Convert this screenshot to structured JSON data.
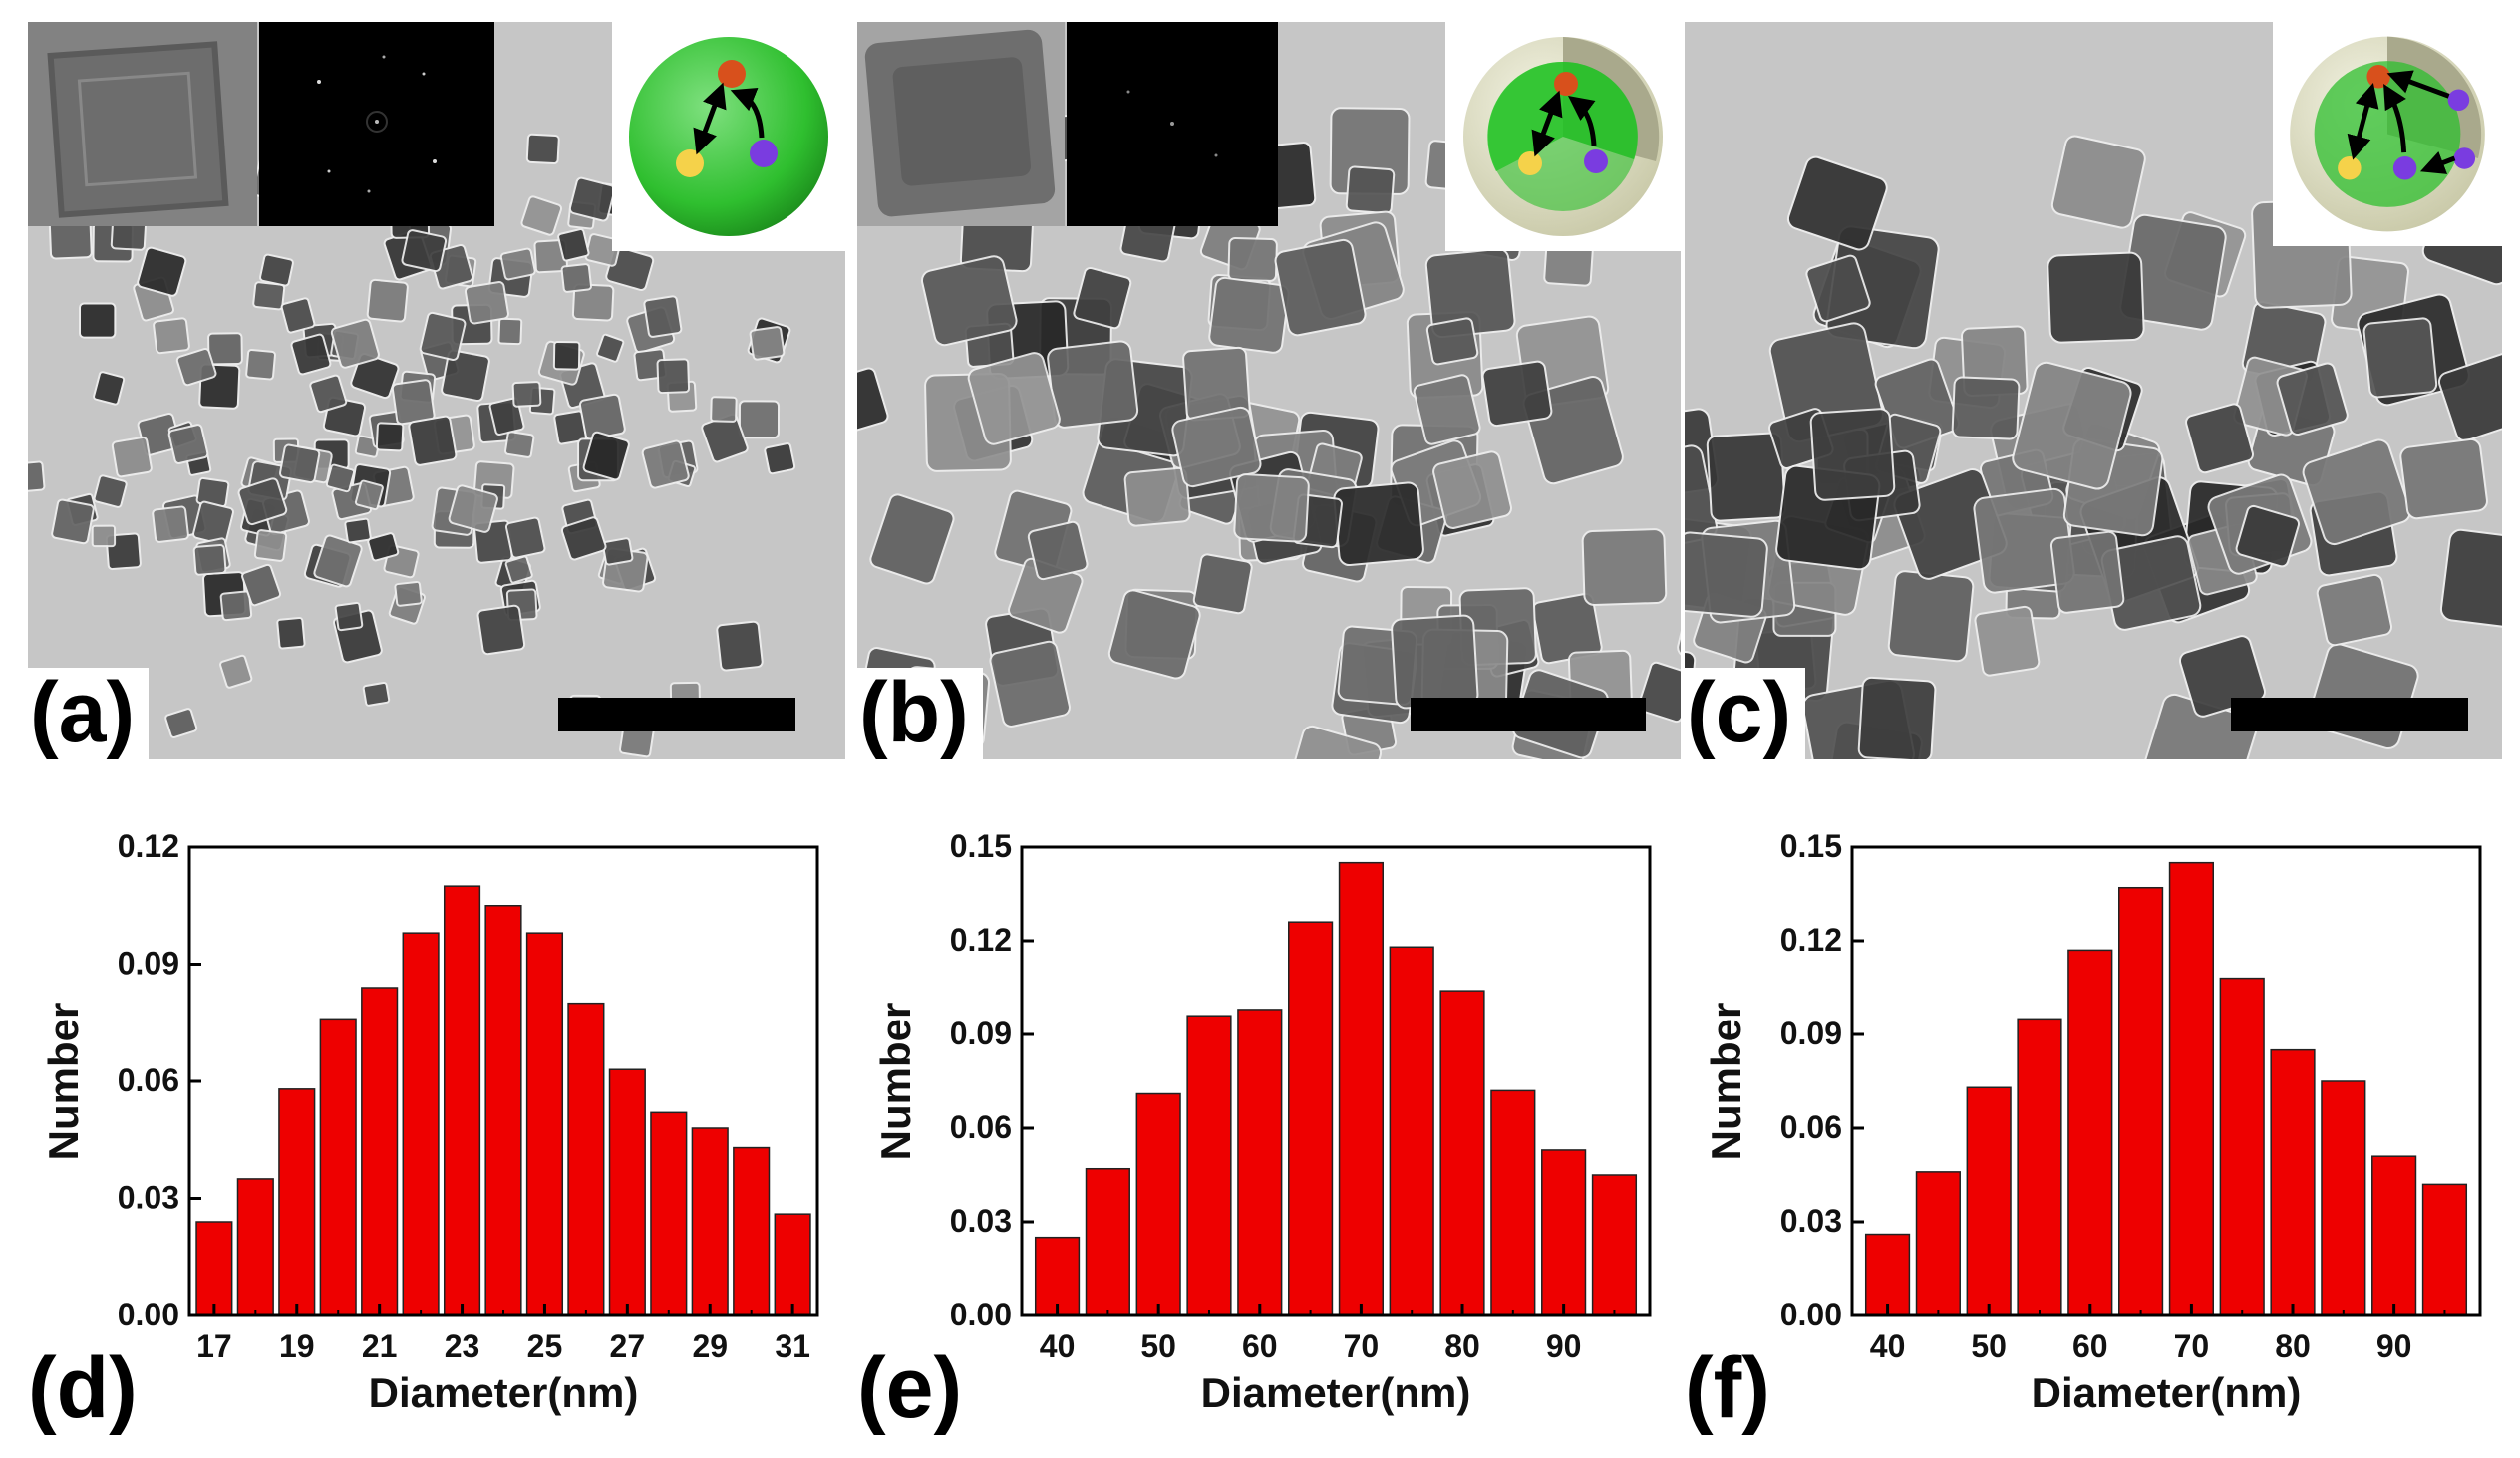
{
  "figure": {
    "tem_panels": [
      {
        "id": "a",
        "label": "(a)"
      },
      {
        "id": "b",
        "label": "(b)"
      },
      {
        "id": "c",
        "label": "(c)"
      }
    ],
    "chart_labels": [
      "(d)",
      "(e)",
      "(f)"
    ]
  },
  "colors": {
    "bar_fill": "#ee0000",
    "core_green": "#2fbf2f",
    "shell": "#e2e2c6",
    "dot_orange": "#d8501c",
    "dot_yellow": "#f5d24a",
    "dot_purple": "#7a3ce0"
  },
  "chart_data": [
    {
      "type": "bar",
      "panel": "(d)",
      "xlabel": "Diameter(nm)",
      "ylabel": "Number",
      "x": [
        17,
        18,
        19,
        20,
        21,
        22,
        23,
        24,
        25,
        26,
        27,
        28,
        29,
        30,
        31
      ],
      "values": [
        0.024,
        0.035,
        0.058,
        0.076,
        0.084,
        0.098,
        0.11,
        0.105,
        0.098,
        0.08,
        0.063,
        0.052,
        0.048,
        0.043,
        0.026
      ],
      "xticks": [
        "17",
        "19",
        "21",
        "23",
        "25",
        "27",
        "29",
        "31"
      ],
      "xtick_values": [
        17,
        19,
        21,
        23,
        25,
        27,
        29,
        31
      ],
      "xlim": [
        16.4,
        31.6
      ],
      "ylim": [
        0,
        0.12
      ],
      "yticks": [
        "0.00",
        "0.03",
        "0.06",
        "0.09",
        "0.12"
      ],
      "ytick_values": [
        0,
        0.03,
        0.06,
        0.09,
        0.12
      ],
      "grid": false
    },
    {
      "type": "bar",
      "panel": "(e)",
      "xlabel": "Diameter(nm)",
      "ylabel": "Number",
      "x": [
        40,
        45,
        50,
        55,
        60,
        65,
        70,
        75,
        80,
        85,
        90,
        95
      ],
      "values": [
        0.025,
        0.047,
        0.071,
        0.096,
        0.098,
        0.126,
        0.145,
        0.118,
        0.104,
        0.072,
        0.053,
        0.045
      ],
      "xticks": [
        "40",
        "50",
        "60",
        "70",
        "80",
        "90"
      ],
      "xtick_values": [
        40,
        50,
        60,
        70,
        80,
        90
      ],
      "xlim": [
        36.5,
        98.5
      ],
      "ylim": [
        0,
        0.15
      ],
      "yticks": [
        "0.00",
        "0.03",
        "0.06",
        "0.09",
        "0.12",
        "0.15"
      ],
      "ytick_values": [
        0,
        0.03,
        0.06,
        0.09,
        0.12,
        0.15
      ],
      "grid": false
    },
    {
      "type": "bar",
      "panel": "(f)",
      "xlabel": "Diameter(nm)",
      "ylabel": "Number",
      "x": [
        40,
        45,
        50,
        55,
        60,
        65,
        70,
        75,
        80,
        85,
        90,
        95
      ],
      "values": [
        0.026,
        0.046,
        0.073,
        0.095,
        0.117,
        0.137,
        0.145,
        0.108,
        0.085,
        0.075,
        0.051,
        0.042
      ],
      "xticks": [
        "40",
        "50",
        "60",
        "70",
        "80",
        "90"
      ],
      "xtick_values": [
        40,
        50,
        60,
        70,
        80,
        90
      ],
      "xlim": [
        36.5,
        98.5
      ],
      "ylim": [
        0,
        0.15
      ],
      "yticks": [
        "0.00",
        "0.03",
        "0.06",
        "0.09",
        "0.12",
        "0.15"
      ],
      "ytick_values": [
        0,
        0.03,
        0.06,
        0.09,
        0.12,
        0.15
      ],
      "grid": false
    }
  ]
}
